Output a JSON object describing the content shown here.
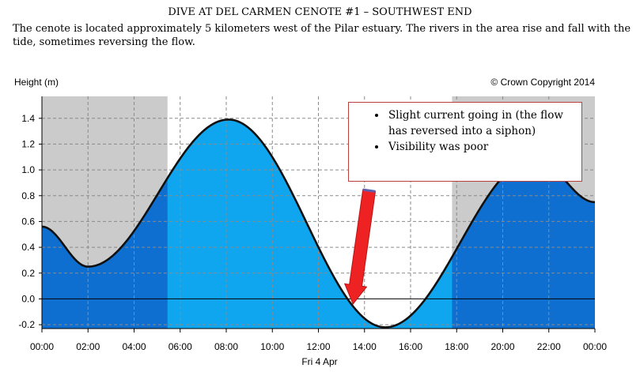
{
  "header": {
    "title": "DIVE AT DEL CARMEN CENOTE #1 – SOUTHWEST END",
    "description": "The cenote is located approximately 5 kilometers west of the Pilar estuary. The rivers in the area rise and fall with the tide, sometimes reversing the flow."
  },
  "annotation": {
    "bullets": [
      "Slight current going in (the flow has reversed into a siphon)",
      "Visibility was poor"
    ]
  },
  "chart_data": {
    "type": "area",
    "ylabel": "Height (m)",
    "copyright": "© Crown Copyright 2014",
    "date_label": "Fri 4 Apr",
    "x_ticks": [
      "00:00",
      "02:00",
      "04:00",
      "06:00",
      "08:00",
      "10:00",
      "12:00",
      "14:00",
      "16:00",
      "18:00",
      "20:00",
      "22:00",
      "00:00"
    ],
    "y_ticks": [
      "1.4",
      "1.2",
      "1.0",
      "0.8",
      "0.6",
      "0.4",
      "0.2",
      "0.0",
      "-0.2"
    ],
    "xlim": [
      0,
      24
    ],
    "ylim": [
      -0.23,
      1.57
    ],
    "series": [
      {
        "x": [
          0,
          2.0,
          8.1,
          14.9,
          21.4,
          24
        ],
        "values": [
          0.56,
          0.25,
          1.39,
          -0.22,
          1.09,
          0.75
        ]
      }
    ],
    "night_shading": [
      [
        0,
        5.45
      ],
      [
        17.8,
        24
      ]
    ],
    "arrow": {
      "from": [
        14.2,
        0.84
      ],
      "to": [
        13.5,
        -0.04
      ]
    },
    "grid": true,
    "colors": {
      "night_bg": "#cbcbcb",
      "night_fill": "#0f6fd0",
      "day_fill": "#0fa6ef",
      "curve": "#111111",
      "arrow": "#ee2222"
    }
  }
}
